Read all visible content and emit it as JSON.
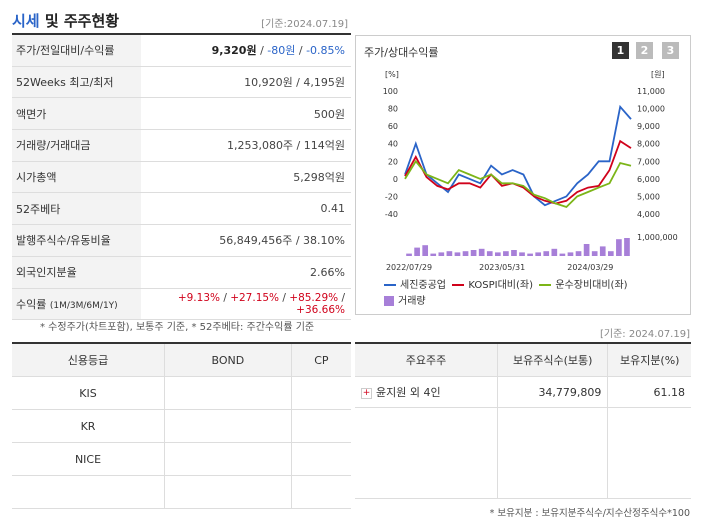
{
  "header": {
    "title_main": "시세",
    "title_rest": " 및 주주현황",
    "date": "[기준:2024.07.19]"
  },
  "info": {
    "rows": [
      {
        "label": "주가/전일대비/수익률",
        "price": "9,320원",
        "change": "-80원",
        "rate": "-0.85%"
      },
      {
        "label": "52Weeks 최고/최저",
        "value": "10,920원 / 4,195원"
      },
      {
        "label": "액면가",
        "value": "500원"
      },
      {
        "label": "거래량/거래대금",
        "value": "1,253,080주 / 114억원"
      },
      {
        "label": "시가총액",
        "value": "5,298억원"
      },
      {
        "label": "52주베타",
        "value": "0.41"
      },
      {
        "label": "발행주식수/유동비율",
        "value": "56,849,456주 / 38.10%"
      },
      {
        "label": "외국인지분율",
        "value": "2.66%"
      }
    ],
    "returns": {
      "label": "수익률",
      "label_sub": "(1M/3M/6M/1Y)",
      "r1": "+9.13%",
      "r2": "+27.15%",
      "r3": "+85.29%",
      "r4": "+36.66%"
    },
    "footnote": "* 수정주가(차트포함), 보통주 기준, * 52주베타: 주간수익률 기준"
  },
  "chart_section": {
    "title": "주가/상대수익률",
    "pages": [
      "1",
      "2",
      "3"
    ]
  },
  "chart_data": {
    "type": "line",
    "y_left_unit": "[%]",
    "y_right_unit": "[원]",
    "y_left_ticks": [
      "100",
      "80",
      "60",
      "40",
      "20",
      "0",
      "-20",
      "-40"
    ],
    "y_right_ticks": [
      "11,000",
      "10,000",
      "9,000",
      "8,000",
      "7,000",
      "6,000",
      "5,000",
      "4,000"
    ],
    "volume_tick": "1,000,000",
    "ylim_left": [
      -40,
      100
    ],
    "x_ticks": [
      "2022/07/29",
      "2023/05/31",
      "2024/03/29"
    ],
    "series": [
      {
        "name": "세진중공업",
        "color": "#2a64c8",
        "values": [
          5,
          40,
          5,
          -5,
          -15,
          5,
          0,
          -5,
          15,
          5,
          10,
          5,
          -20,
          -30,
          -25,
          -20,
          -5,
          5,
          20,
          20,
          82,
          68
        ]
      },
      {
        "name": "KOSPI대비(좌)",
        "color": "#d0021b",
        "values": [
          3,
          25,
          2,
          -8,
          -12,
          -5,
          -5,
          -10,
          5,
          -8,
          -5,
          -10,
          -20,
          -25,
          -28,
          -25,
          -15,
          -10,
          -8,
          10,
          43,
          35
        ]
      },
      {
        "name": "운수장비대비(좌)",
        "color": "#7cb518",
        "values": [
          0,
          20,
          5,
          0,
          -5,
          10,
          5,
          0,
          5,
          -5,
          -5,
          -8,
          -18,
          -22,
          -28,
          -32,
          -20,
          -15,
          -10,
          -5,
          18,
          15
        ]
      }
    ],
    "volume": {
      "name": "거래량",
      "color": "#a77fd8",
      "values": [
        0.1,
        0.35,
        0.45,
        0.1,
        0.15,
        0.2,
        0.15,
        0.2,
        0.25,
        0.3,
        0.2,
        0.15,
        0.2,
        0.25,
        0.15,
        0.1,
        0.15,
        0.2,
        0.3,
        0.1,
        0.15,
        0.2,
        0.5,
        0.2,
        0.4,
        0.2,
        0.7,
        0.75
      ]
    }
  },
  "credit": {
    "headers": [
      "신용등급",
      "BOND",
      "CP"
    ],
    "rows": [
      [
        "KIS",
        "",
        ""
      ],
      [
        "KR",
        "",
        ""
      ],
      [
        "NICE",
        "",
        ""
      ],
      [
        "",
        "",
        ""
      ]
    ]
  },
  "holders": {
    "headers": [
      "주요주주",
      "보유주식수(보통)",
      "보유지분(%)"
    ],
    "rows": [
      {
        "name": "윤지원 외 4인",
        "shares": "34,779,809",
        "pct": "61.18"
      }
    ],
    "date": "[기준: 2024.07.19]",
    "footnote": "* 보유지분 : 보유지분주식수/지수산정주식수*100"
  }
}
